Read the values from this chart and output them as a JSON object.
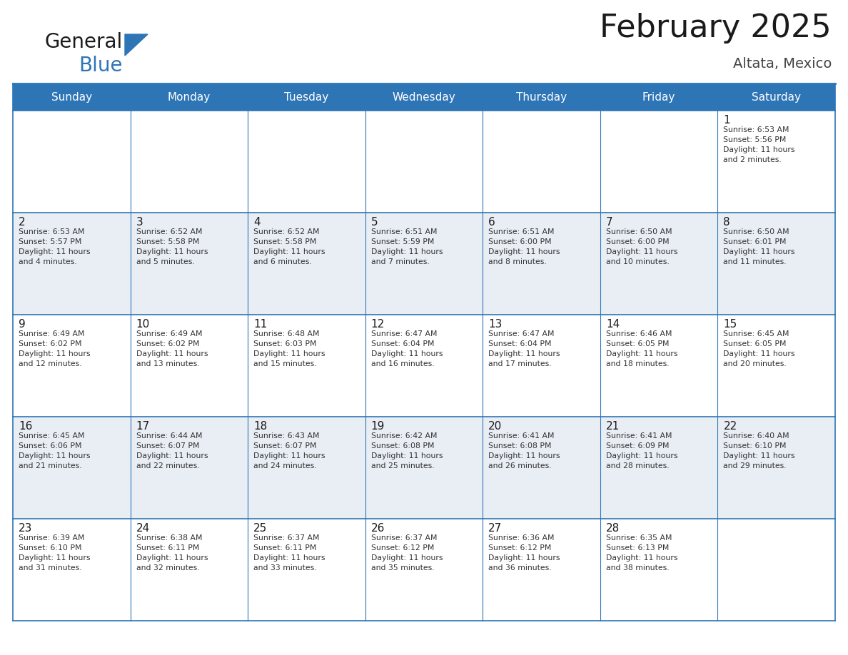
{
  "title": "February 2025",
  "subtitle": "Altata, Mexico",
  "header_bg": "#2E75B6",
  "header_text_color": "#FFFFFF",
  "row_bg_light": "#E9EEF4",
  "row_bg_white": "#FFFFFF",
  "day_headers": [
    "Sunday",
    "Monday",
    "Tuesday",
    "Wednesday",
    "Thursday",
    "Friday",
    "Saturday"
  ],
  "title_fontsize": 32,
  "subtitle_fontsize": 14,
  "header_fontsize": 11,
  "day_num_fontsize": 11,
  "info_fontsize": 7.8,
  "line_color": "#2E75B6",
  "day_num_color": "#1a1a1a",
  "info_text_color": "#333333",
  "logo_general_color": "#1a1a1a",
  "logo_blue_color": "#2E75B6",
  "row_backgrounds": [
    "#FFFFFF",
    "#E9EEF4",
    "#FFFFFF",
    "#E9EEF4",
    "#FFFFFF"
  ],
  "weeks": [
    [
      {
        "day": null,
        "info": ""
      },
      {
        "day": null,
        "info": ""
      },
      {
        "day": null,
        "info": ""
      },
      {
        "day": null,
        "info": ""
      },
      {
        "day": null,
        "info": ""
      },
      {
        "day": null,
        "info": ""
      },
      {
        "day": 1,
        "info": "Sunrise: 6:53 AM\nSunset: 5:56 PM\nDaylight: 11 hours\nand 2 minutes."
      }
    ],
    [
      {
        "day": 2,
        "info": "Sunrise: 6:53 AM\nSunset: 5:57 PM\nDaylight: 11 hours\nand 4 minutes."
      },
      {
        "day": 3,
        "info": "Sunrise: 6:52 AM\nSunset: 5:58 PM\nDaylight: 11 hours\nand 5 minutes."
      },
      {
        "day": 4,
        "info": "Sunrise: 6:52 AM\nSunset: 5:58 PM\nDaylight: 11 hours\nand 6 minutes."
      },
      {
        "day": 5,
        "info": "Sunrise: 6:51 AM\nSunset: 5:59 PM\nDaylight: 11 hours\nand 7 minutes."
      },
      {
        "day": 6,
        "info": "Sunrise: 6:51 AM\nSunset: 6:00 PM\nDaylight: 11 hours\nand 8 minutes."
      },
      {
        "day": 7,
        "info": "Sunrise: 6:50 AM\nSunset: 6:00 PM\nDaylight: 11 hours\nand 10 minutes."
      },
      {
        "day": 8,
        "info": "Sunrise: 6:50 AM\nSunset: 6:01 PM\nDaylight: 11 hours\nand 11 minutes."
      }
    ],
    [
      {
        "day": 9,
        "info": "Sunrise: 6:49 AM\nSunset: 6:02 PM\nDaylight: 11 hours\nand 12 minutes."
      },
      {
        "day": 10,
        "info": "Sunrise: 6:49 AM\nSunset: 6:02 PM\nDaylight: 11 hours\nand 13 minutes."
      },
      {
        "day": 11,
        "info": "Sunrise: 6:48 AM\nSunset: 6:03 PM\nDaylight: 11 hours\nand 15 minutes."
      },
      {
        "day": 12,
        "info": "Sunrise: 6:47 AM\nSunset: 6:04 PM\nDaylight: 11 hours\nand 16 minutes."
      },
      {
        "day": 13,
        "info": "Sunrise: 6:47 AM\nSunset: 6:04 PM\nDaylight: 11 hours\nand 17 minutes."
      },
      {
        "day": 14,
        "info": "Sunrise: 6:46 AM\nSunset: 6:05 PM\nDaylight: 11 hours\nand 18 minutes."
      },
      {
        "day": 15,
        "info": "Sunrise: 6:45 AM\nSunset: 6:05 PM\nDaylight: 11 hours\nand 20 minutes."
      }
    ],
    [
      {
        "day": 16,
        "info": "Sunrise: 6:45 AM\nSunset: 6:06 PM\nDaylight: 11 hours\nand 21 minutes."
      },
      {
        "day": 17,
        "info": "Sunrise: 6:44 AM\nSunset: 6:07 PM\nDaylight: 11 hours\nand 22 minutes."
      },
      {
        "day": 18,
        "info": "Sunrise: 6:43 AM\nSunset: 6:07 PM\nDaylight: 11 hours\nand 24 minutes."
      },
      {
        "day": 19,
        "info": "Sunrise: 6:42 AM\nSunset: 6:08 PM\nDaylight: 11 hours\nand 25 minutes."
      },
      {
        "day": 20,
        "info": "Sunrise: 6:41 AM\nSunset: 6:08 PM\nDaylight: 11 hours\nand 26 minutes."
      },
      {
        "day": 21,
        "info": "Sunrise: 6:41 AM\nSunset: 6:09 PM\nDaylight: 11 hours\nand 28 minutes."
      },
      {
        "day": 22,
        "info": "Sunrise: 6:40 AM\nSunset: 6:10 PM\nDaylight: 11 hours\nand 29 minutes."
      }
    ],
    [
      {
        "day": 23,
        "info": "Sunrise: 6:39 AM\nSunset: 6:10 PM\nDaylight: 11 hours\nand 31 minutes."
      },
      {
        "day": 24,
        "info": "Sunrise: 6:38 AM\nSunset: 6:11 PM\nDaylight: 11 hours\nand 32 minutes."
      },
      {
        "day": 25,
        "info": "Sunrise: 6:37 AM\nSunset: 6:11 PM\nDaylight: 11 hours\nand 33 minutes."
      },
      {
        "day": 26,
        "info": "Sunrise: 6:37 AM\nSunset: 6:12 PM\nDaylight: 11 hours\nand 35 minutes."
      },
      {
        "day": 27,
        "info": "Sunrise: 6:36 AM\nSunset: 6:12 PM\nDaylight: 11 hours\nand 36 minutes."
      },
      {
        "day": 28,
        "info": "Sunrise: 6:35 AM\nSunset: 6:13 PM\nDaylight: 11 hours\nand 38 minutes."
      },
      {
        "day": null,
        "info": ""
      }
    ]
  ]
}
